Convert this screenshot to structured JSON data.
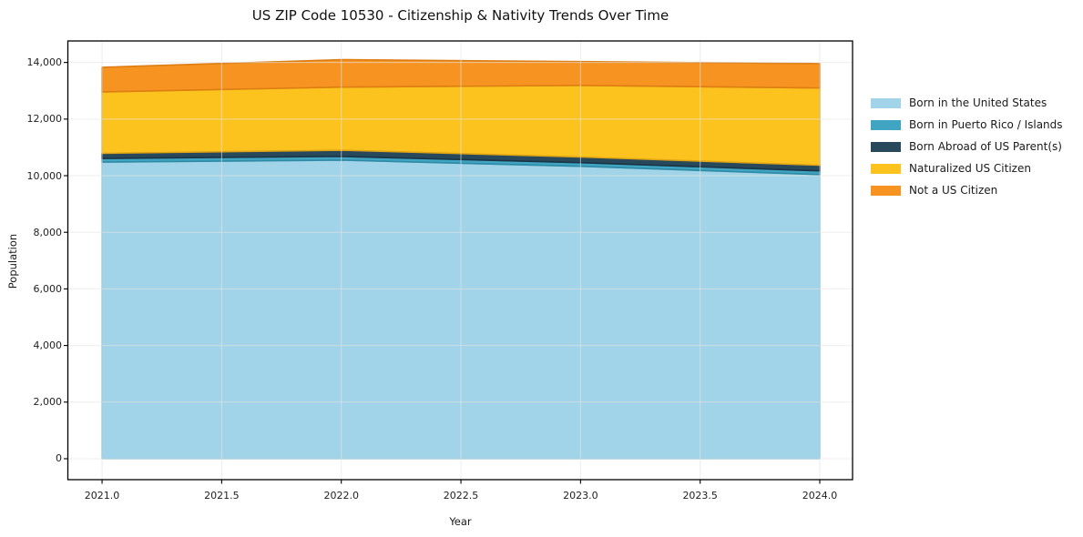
{
  "page": {
    "background": "#ffffff"
  },
  "chart_data": {
    "type": "area",
    "stacked": true,
    "title": "US ZIP Code 10530 - Citizenship & Nativity Trends Over Time",
    "xlabel": "Year",
    "ylabel": "Population",
    "x": [
      2021,
      2022,
      2023,
      2024
    ],
    "series": [
      {
        "name": "Born in the United States",
        "values": [
          10480,
          10550,
          10330,
          10040
        ],
        "fill": "#a1d4e8",
        "edge": "#7fbfda"
      },
      {
        "name": "Born in Puerto Rico / Islands",
        "values": [
          130,
          130,
          130,
          130
        ],
        "fill": "#3fa5c2",
        "edge": "#2f8aa5"
      },
      {
        "name": "Born Abroad of US Parent(s)",
        "values": [
          180,
          220,
          200,
          200
        ],
        "fill": "#28495c",
        "edge": "#1b3443"
      },
      {
        "name": "Naturalized US Citizen",
        "values": [
          2170,
          2230,
          2530,
          2730
        ],
        "fill": "#fcc31e",
        "edge": "#dfa414"
      },
      {
        "name": "Not a US Citizen",
        "values": [
          870,
          970,
          840,
          860
        ],
        "fill": "#f79421",
        "edge": "#dd7d12"
      }
    ],
    "totals_by_year": [
      13830,
      14100,
      14030,
      13930
    ],
    "xlim": [
      2020.857,
      2024.137
    ],
    "ylim": [
      -740,
      14760
    ],
    "x_ticks": {
      "values": [
        2021,
        2021.5,
        2022,
        2022.5,
        2023,
        2023.5,
        2024
      ],
      "labels": [
        "2021.0",
        "2021.5",
        "2022.0",
        "2022.5",
        "2023.0",
        "2023.5",
        "2024.0"
      ]
    },
    "y_ticks": {
      "values": [
        0,
        2000,
        4000,
        6000,
        8000,
        10000,
        12000,
        14000
      ],
      "labels": [
        "0",
        "2,000",
        "4,000",
        "6,000",
        "8,000",
        "10,000",
        "12,000",
        "14,000"
      ]
    },
    "grid": true,
    "legend_position": "right-outside"
  },
  "style": {
    "axis_color": "#000000",
    "text_color": "#1a1a1a",
    "grid_color": "rgba(228,228,228,0.65)"
  }
}
